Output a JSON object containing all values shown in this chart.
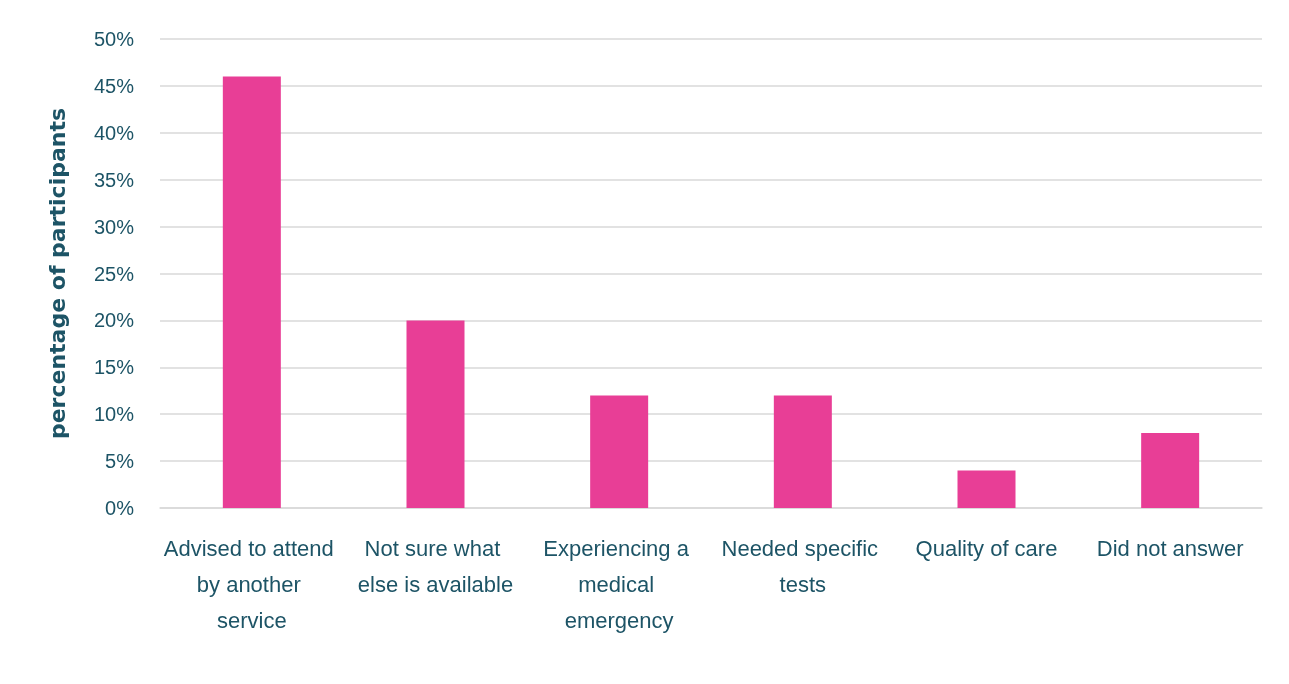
{
  "chart_data": {
    "type": "bar",
    "ylabel": "percentage of participants",
    "categories": [
      "Advised to attend by another service",
      "Not sure what else is available",
      "Experiencing a medical emergency",
      "Needed specific tests",
      "Quality of care",
      "Did not answer"
    ],
    "values": [
      46,
      20,
      12,
      12,
      4,
      8
    ],
    "color": "#e83e96",
    "ylim": [
      0,
      50
    ],
    "yticks": [
      {
        "value": 0,
        "label": "0%"
      },
      {
        "value": 5,
        "label": "5%"
      },
      {
        "value": 10,
        "label": "10%"
      },
      {
        "value": 15,
        "label": "15%"
      },
      {
        "value": 20,
        "label": "20%"
      },
      {
        "value": 25,
        "label": "25%"
      },
      {
        "value": 30,
        "label": "30%"
      },
      {
        "value": 35,
        "label": "35%"
      },
      {
        "value": 40,
        "label": "40%"
      },
      {
        "value": 45,
        "label": "45%"
      },
      {
        "value": 50,
        "label": "50%"
      }
    ],
    "grid": "y"
  }
}
